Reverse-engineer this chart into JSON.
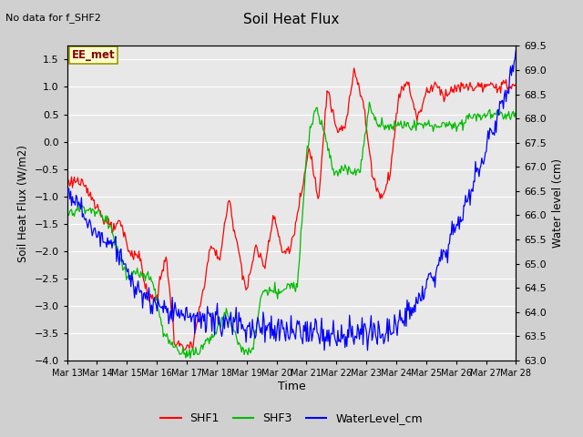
{
  "title": "Soil Heat Flux",
  "subtitle": "No data for f_SHF2",
  "xlabel": "Time",
  "ylabel_left": "Soil Heat Flux (W/m2)",
  "ylabel_right": "Water level (cm)",
  "ylim_left": [
    -4.0,
    1.75
  ],
  "ylim_right": [
    63.0,
    69.5
  ],
  "yticks_left": [
    -4.0,
    -3.5,
    -3.0,
    -2.5,
    -2.0,
    -1.5,
    -1.0,
    -0.5,
    0.0,
    0.5,
    1.0,
    1.5
  ],
  "yticks_right": [
    63.0,
    63.5,
    64.0,
    64.5,
    65.0,
    65.5,
    66.0,
    66.5,
    67.0,
    67.5,
    68.0,
    68.5,
    69.0,
    69.5
  ],
  "xtick_labels": [
    "Mar 13",
    "Mar 14",
    "Mar 15",
    "Mar 16",
    "Mar 17",
    "Mar 18",
    "Mar 19",
    "Mar 20",
    "Mar 21",
    "Mar 22",
    "Mar 23",
    "Mar 24",
    "Mar 25",
    "Mar 26",
    "Mar 27",
    "Mar 28"
  ],
  "legend_labels": [
    "SHF1",
    "SHF3",
    "WaterLevel_cm"
  ],
  "legend_colors": [
    "#ff0000",
    "#00bb00",
    "#0000ff"
  ],
  "annotation_text": "EE_met",
  "annotation_box_facecolor": "#ffffcc",
  "annotation_box_edgecolor": "#999900",
  "annotation_text_color": "#880000",
  "fig_facecolor": "#d0d0d0",
  "plot_facecolor": "#e8e8e8",
  "shf1_color": "#ff0000",
  "shf3_color": "#00bb00",
  "water_color": "#0000ff",
  "shf1_kp_x": [
    0,
    0.3,
    0.6,
    0.9,
    1.2,
    1.5,
    1.8,
    2.1,
    2.4,
    2.7,
    3.0,
    3.3,
    3.6,
    3.9,
    4.2,
    4.5,
    4.8,
    5.1,
    5.4,
    5.7,
    6.0,
    6.3,
    6.6,
    6.9,
    7.2,
    7.5,
    7.8,
    8.1,
    8.4,
    8.7,
    9.0,
    9.3,
    9.6,
    9.9,
    10.2,
    10.5,
    10.8,
    11.1,
    11.4,
    11.7,
    12.0,
    12.3,
    12.6,
    12.9,
    13.2,
    13.5,
    13.8,
    14.1,
    14.4,
    14.7,
    15.0
  ],
  "shf1_kp_y": [
    -0.75,
    -0.7,
    -0.85,
    -1.05,
    -1.4,
    -1.6,
    -1.5,
    -2.05,
    -2.05,
    -2.85,
    -2.85,
    -2.05,
    -3.7,
    -3.75,
    -3.75,
    -2.85,
    -1.9,
    -2.15,
    -1.05,
    -1.9,
    -2.75,
    -1.9,
    -2.3,
    -1.3,
    -2.05,
    -1.9,
    -1.05,
    -0.1,
    -1.05,
    1.0,
    0.2,
    0.25,
    1.35,
    0.7,
    -0.6,
    -1.05,
    -0.55,
    0.9,
    1.1,
    0.4,
    0.9,
    1.05,
    0.85,
    0.95,
    1.0,
    1.0,
    1.0,
    1.0,
    1.02,
    1.02,
    1.02
  ],
  "shf3_kp_x": [
    0,
    0.5,
    0.8,
    1.1,
    1.4,
    1.7,
    2.0,
    2.3,
    2.6,
    2.9,
    3.2,
    3.5,
    3.8,
    4.1,
    4.4,
    4.7,
    5.0,
    5.3,
    5.6,
    5.9,
    6.2,
    6.5,
    6.8,
    7.1,
    7.4,
    7.7,
    8.0,
    8.3,
    8.6,
    8.9,
    9.2,
    9.5,
    9.8,
    10.1,
    10.4,
    10.7,
    11.0,
    11.3,
    11.6,
    11.9,
    12.2,
    12.5,
    12.8,
    13.1,
    13.4,
    13.7,
    14.0,
    14.3,
    14.6,
    14.9,
    15.0
  ],
  "shf3_kp_y": [
    -1.35,
    -1.2,
    -1.25,
    -1.35,
    -1.45,
    -2.0,
    -2.5,
    -2.4,
    -2.45,
    -2.6,
    -3.5,
    -3.7,
    -3.85,
    -3.85,
    -3.85,
    -3.6,
    -3.5,
    -3.1,
    -3.5,
    -3.85,
    -3.85,
    -2.75,
    -2.75,
    -2.75,
    -2.65,
    -2.65,
    -0.15,
    0.65,
    0.2,
    -0.55,
    -0.5,
    -0.55,
    -0.5,
    0.65,
    0.3,
    0.3,
    0.3,
    0.3,
    0.3,
    0.3,
    0.3,
    0.3,
    0.3,
    0.3,
    0.45,
    0.48,
    0.5,
    0.5,
    0.5,
    0.5,
    0.5
  ],
  "wl_kp_x": [
    0,
    0.3,
    0.6,
    0.9,
    1.2,
    1.5,
    1.8,
    2.1,
    2.4,
    2.7,
    3.0,
    3.3,
    3.6,
    3.9,
    4.2,
    4.5,
    4.8,
    5.1,
    5.4,
    5.7,
    6.0,
    6.3,
    6.6,
    6.9,
    7.2,
    7.5,
    7.8,
    8.1,
    8.4,
    8.7,
    9.0,
    9.3,
    9.6,
    9.9,
    10.2,
    10.5,
    10.8,
    11.1,
    11.4,
    11.7,
    12.0,
    12.3,
    12.6,
    12.9,
    13.2,
    13.5,
    13.8,
    14.1,
    14.4,
    14.7,
    15.0
  ],
  "wl_kp_y": [
    66.5,
    66.35,
    65.95,
    65.6,
    65.55,
    65.45,
    65.15,
    64.65,
    64.45,
    64.25,
    64.1,
    64.05,
    64.0,
    63.95,
    63.9,
    63.85,
    63.82,
    63.8,
    63.78,
    63.75,
    63.72,
    63.7,
    63.68,
    63.65,
    63.62,
    63.6,
    63.58,
    63.55,
    63.52,
    63.5,
    63.5,
    63.5,
    63.52,
    63.55,
    63.6,
    63.65,
    63.7,
    63.8,
    64.0,
    64.2,
    64.5,
    64.8,
    65.2,
    65.6,
    66.0,
    66.5,
    67.0,
    67.5,
    68.0,
    68.6,
    69.2
  ]
}
